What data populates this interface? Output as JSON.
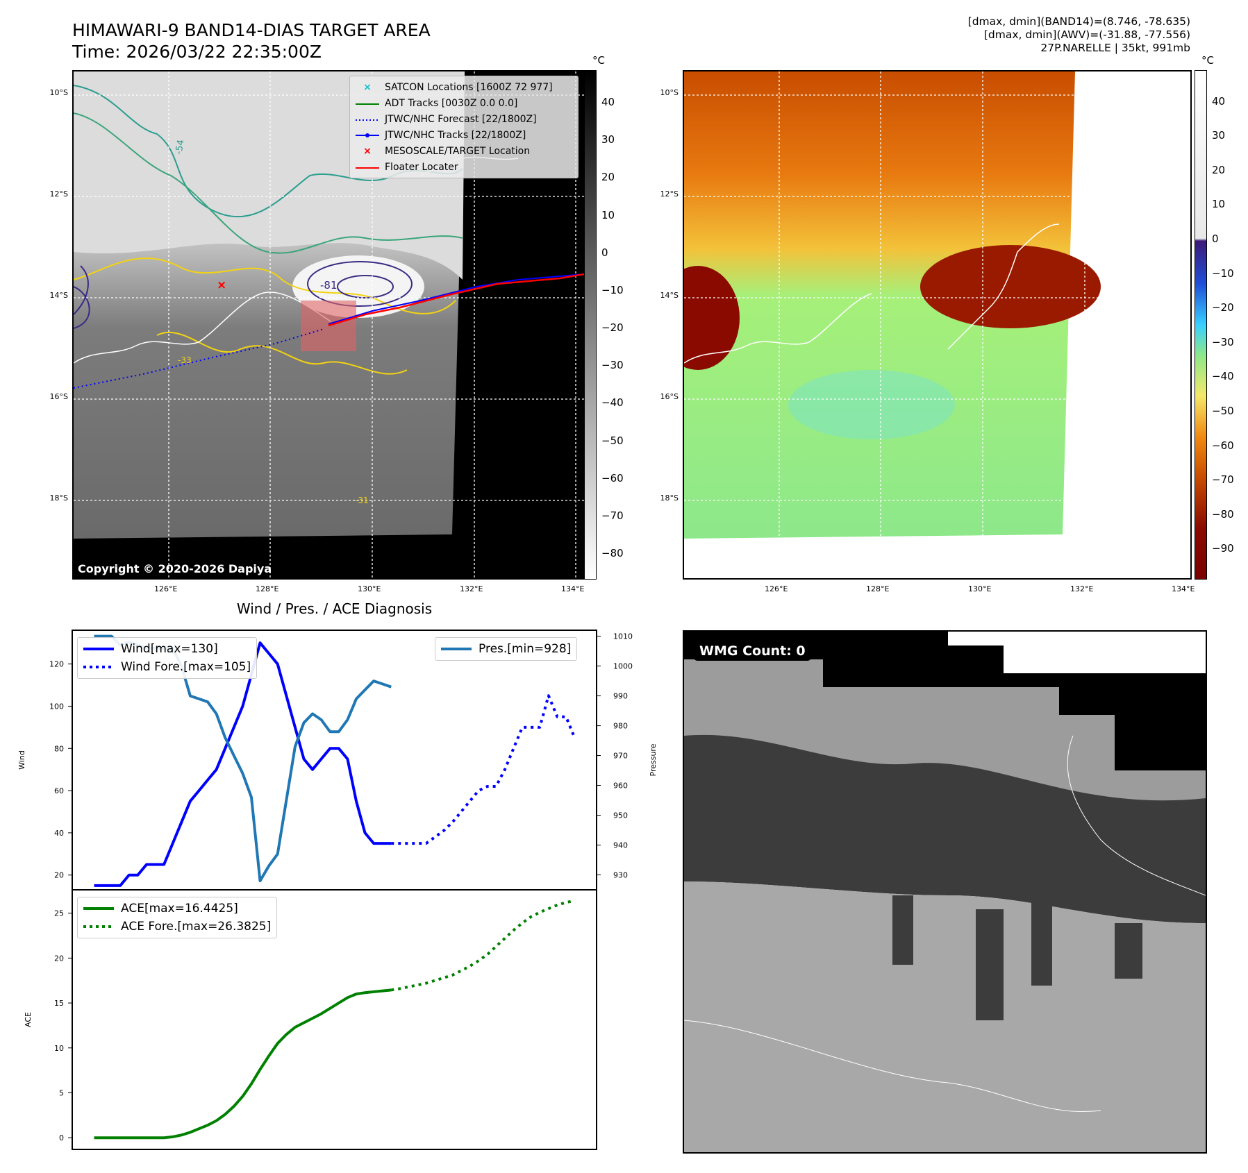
{
  "header": {
    "title_line1": "HIMAWARI-9 BAND14-DIAS TARGET AREA",
    "title_line2": "Time: 2026/03/22 22:35:00Z",
    "info_line1": "[dmax, dmin](BAND14)=(8.746, -78.635)",
    "info_line2": "[dmax, dmin](AWV)=(-31.88, -77.556)",
    "info_line3": "27P.NARELLE | 35kt, 991mb"
  },
  "map_axes": {
    "lat_labels": [
      "10°S",
      "12°S",
      "14°S",
      "16°S",
      "18°S"
    ],
    "lon_labels": [
      "126°E",
      "128°E",
      "130°E",
      "132°E",
      "134°E"
    ]
  },
  "ir_panel": {
    "copyright": "Copyright © 2020-2026 Dapiya",
    "contour_labels": [
      "-54",
      "-81",
      "-33",
      "-31"
    ],
    "legend": [
      {
        "label": "SATCON Locations [1600Z 72 977]",
        "symbol": "x",
        "color": "#17becf"
      },
      {
        "label": "ADT Tracks [0030Z 0.0 0.0]",
        "symbol": "line",
        "color": "#008000"
      },
      {
        "label": "JTWC/NHC Forecast [22/1800Z]",
        "symbol": "dotted",
        "color": "#0000ff"
      },
      {
        "label": "JTWC/NHC Tracks [22/1800Z]",
        "symbol": "line-dot",
        "color": "#0000ff"
      },
      {
        "label": "MESOSCALE/TARGET Location",
        "symbol": "x",
        "color": "#ff0000"
      },
      {
        "label": "Floater Locater",
        "symbol": "line",
        "color": "#ff0000"
      }
    ],
    "colorbar": {
      "unit": "°C",
      "ticks": [
        "40",
        "30",
        "20",
        "10",
        "0",
        "−10",
        "−20",
        "−30",
        "−40",
        "−50",
        "−60",
        "−70",
        "−80"
      ]
    }
  },
  "awv_panel": {
    "colorbar": {
      "unit": "°C",
      "ticks": [
        "40",
        "30",
        "20",
        "10",
        "0",
        "−10",
        "−20",
        "−30",
        "−40",
        "−50",
        "−60",
        "−70",
        "−80",
        "−90"
      ]
    }
  },
  "wmg_panel": {
    "label": "WMG Count: 0"
  },
  "chart_data": [
    {
      "type": "line",
      "title": "Wind / Pres. / ACE Diagnosis",
      "ylabel": "Wind",
      "y2label": "Pressure",
      "ylim": [
        13,
        136
      ],
      "y2lim": [
        925,
        1012
      ],
      "yticks": [
        20,
        40,
        60,
        80,
        100,
        120
      ],
      "y2ticks": [
        930,
        940,
        950,
        960,
        970,
        980,
        990,
        1000,
        1010
      ],
      "x": [
        0,
        1,
        2,
        3,
        4,
        5,
        6,
        7,
        8,
        9,
        10,
        11,
        12,
        13,
        14,
        15,
        16,
        17,
        18,
        19,
        20,
        21,
        22,
        23,
        24,
        25,
        26,
        27,
        28,
        29,
        30,
        31,
        32,
        33,
        34,
        35,
        36,
        37,
        38,
        39,
        40,
        41,
        42,
        43,
        44,
        45,
        46,
        47,
        48,
        49,
        50,
        51,
        52,
        53,
        54,
        55
      ],
      "xlim": [
        -2.5,
        57.5
      ],
      "series": [
        {
          "name": "Wind[max=130]",
          "color": "#0000ff",
          "style": "solid",
          "x": [
            0,
            1,
            2,
            3,
            4,
            5,
            6,
            7,
            8,
            9,
            10,
            11,
            12,
            13,
            14,
            15,
            16,
            17,
            18,
            19,
            20,
            21,
            22,
            23,
            24,
            25,
            26,
            27,
            28,
            29,
            30,
            31,
            32,
            33,
            34
          ],
          "values": [
            15,
            15,
            15,
            15,
            20,
            20,
            25,
            25,
            25,
            35,
            45,
            55,
            60,
            65,
            70,
            80,
            90,
            100,
            115,
            130,
            125,
            120,
            105,
            90,
            75,
            70,
            75,
            80,
            80,
            75,
            55,
            40,
            35,
            35,
            35
          ]
        },
        {
          "name": "Wind Fore.[max=105]",
          "color": "#0000ff",
          "style": "dotted",
          "x": [
            34,
            35,
            36,
            37,
            38,
            39,
            40,
            41,
            42,
            43,
            44,
            45,
            46,
            47,
            48,
            49,
            50,
            51,
            52,
            53,
            54,
            55
          ],
          "values": [
            35,
            35,
            35,
            35,
            35,
            38,
            41,
            45,
            50,
            55,
            60,
            62,
            62,
            70,
            80,
            90,
            90,
            90,
            105,
            95,
            95,
            85
          ]
        },
        {
          "name": "Pres.[min=928]",
          "color": "#1f77b4",
          "style": "solid",
          "axis": "right",
          "x": [
            0,
            1,
            2,
            3,
            4,
            5,
            6,
            7,
            8,
            9,
            10,
            11,
            12,
            13,
            14,
            15,
            16,
            17,
            18,
            19,
            20,
            21,
            22,
            23,
            24,
            25,
            26,
            27,
            28,
            29,
            30,
            31,
            32,
            33,
            34
          ],
          "values": [
            1010,
            1010,
            1010,
            1007,
            1008,
            1007,
            1006,
            1006,
            1006,
            1006,
            1000,
            990,
            989,
            988,
            984,
            976,
            970,
            964,
            956,
            928,
            933,
            937,
            955,
            973,
            981,
            984,
            982,
            978,
            978,
            982,
            989,
            992,
            995,
            994,
            993
          ]
        }
      ]
    },
    {
      "type": "line",
      "ylabel": "ACE",
      "ylim": [
        -1.3,
        27.6
      ],
      "yticks": [
        0,
        5,
        10,
        15,
        20,
        25
      ],
      "xlim": [
        -2.5,
        57.5
      ],
      "series": [
        {
          "name": "ACE[max=16.4425]",
          "color": "#008000",
          "style": "solid",
          "x": [
            0,
            1,
            2,
            3,
            4,
            5,
            6,
            7,
            8,
            9,
            10,
            11,
            12,
            13,
            14,
            15,
            16,
            17,
            18,
            19,
            20,
            21,
            22,
            23,
            24,
            25,
            26,
            27,
            28,
            29,
            30,
            31,
            32,
            33,
            34
          ],
          "values": [
            0,
            0,
            0,
            0,
            0,
            0,
            0,
            0,
            0,
            0.1,
            0.3,
            0.6,
            1.0,
            1.4,
            1.9,
            2.6,
            3.5,
            4.6,
            6.0,
            7.6,
            9.1,
            10.5,
            11.5,
            12.3,
            12.8,
            13.3,
            13.8,
            14.4,
            15.0,
            15.6,
            16.0,
            16.15,
            16.25,
            16.35,
            16.44
          ]
        },
        {
          "name": "ACE Fore.[max=26.3825]",
          "color": "#008000",
          "style": "dotted",
          "x": [
            34,
            35,
            36,
            37,
            38,
            39,
            40,
            41,
            42,
            43,
            44,
            45,
            46,
            47,
            48,
            49,
            50,
            51,
            52,
            53,
            54,
            55
          ],
          "values": [
            16.44,
            16.6,
            16.8,
            17.0,
            17.2,
            17.5,
            17.8,
            18.1,
            18.6,
            19.1,
            19.7,
            20.4,
            21.3,
            22.2,
            23.1,
            23.9,
            24.6,
            25.1,
            25.5,
            25.9,
            26.2,
            26.38
          ]
        }
      ]
    }
  ]
}
